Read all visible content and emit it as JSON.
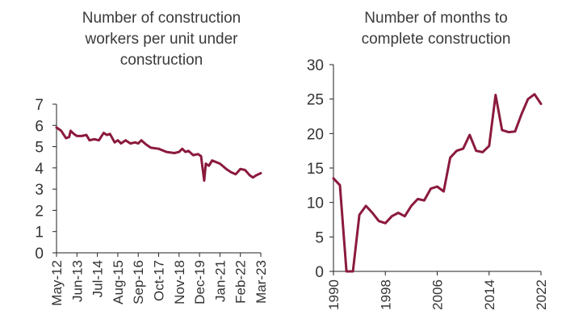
{
  "chart_data": [
    {
      "type": "line",
      "title_lines": [
        "Number of construction",
        "workers per unit under",
        "construction"
      ],
      "xlabel": "",
      "ylabel": "",
      "ylim": [
        0,
        7
      ],
      "yticks": [
        0,
        1,
        2,
        3,
        4,
        5,
        6,
        7
      ],
      "xlim": [
        "May-12",
        "Mar-23"
      ],
      "xticks": [
        "May-12",
        "Jun-13",
        "Jul-14",
        "Aug-15",
        "Sep-16",
        "Oct-17",
        "Nov-18",
        "Dec-19",
        "Jan-21",
        "Feb-22",
        "Mar-23"
      ],
      "grid": false,
      "color": "#8b1a3d",
      "series": [
        {
          "points": [
            [
              "May-12",
              5.9
            ],
            [
              "Aug-12",
              5.75
            ],
            [
              "Nov-12",
              5.4
            ],
            [
              "Jan-13",
              5.45
            ],
            [
              "Feb-13",
              5.75
            ],
            [
              "Apr-13",
              5.6
            ],
            [
              "Jun-13",
              5.5
            ],
            [
              "Sep-13",
              5.5
            ],
            [
              "Dec-13",
              5.55
            ],
            [
              "Feb-14",
              5.3
            ],
            [
              "May-14",
              5.35
            ],
            [
              "Aug-14",
              5.3
            ],
            [
              "Nov-14",
              5.65
            ],
            [
              "Jan-15",
              5.55
            ],
            [
              "Mar-15",
              5.6
            ],
            [
              "Jun-15",
              5.2
            ],
            [
              "Aug-15",
              5.3
            ],
            [
              "Oct-15",
              5.15
            ],
            [
              "Jan-16",
              5.3
            ],
            [
              "Apr-16",
              5.15
            ],
            [
              "Jul-16",
              5.2
            ],
            [
              "Sep-16",
              5.15
            ],
            [
              "Nov-16",
              5.3
            ],
            [
              "Feb-17",
              5.1
            ],
            [
              "May-17",
              4.95
            ],
            [
              "Oct-17",
              4.9
            ],
            [
              "Mar-18",
              4.75
            ],
            [
              "Aug-18",
              4.7
            ],
            [
              "Nov-18",
              4.75
            ],
            [
              "Jan-19",
              4.9
            ],
            [
              "Mar-19",
              4.75
            ],
            [
              "May-19",
              4.8
            ],
            [
              "Aug-19",
              4.6
            ],
            [
              "Nov-19",
              4.65
            ],
            [
              "Jan-20",
              4.55
            ],
            [
              "Mar-20",
              3.4
            ],
            [
              "Apr-20",
              4.2
            ],
            [
              "Jun-20",
              4.1
            ],
            [
              "Aug-20",
              4.35
            ],
            [
              "Jan-21",
              4.2
            ],
            [
              "May-21",
              3.95
            ],
            [
              "Aug-21",
              3.8
            ],
            [
              "Nov-21",
              3.7
            ],
            [
              "Feb-22",
              3.95
            ],
            [
              "May-22",
              3.9
            ],
            [
              "Aug-22",
              3.65
            ],
            [
              "Oct-22",
              3.55
            ],
            [
              "Dec-22",
              3.65
            ],
            [
              "Mar-23",
              3.75
            ]
          ]
        }
      ]
    },
    {
      "type": "line",
      "title_lines": [
        "Number of months to",
        "complete construction"
      ],
      "xlabel": "",
      "ylabel": "",
      "ylim": [
        0,
        30
      ],
      "yticks": [
        0,
        5,
        10,
        15,
        20,
        25,
        30
      ],
      "xlim": [
        1990,
        2022
      ],
      "xticks": [
        1990,
        1998,
        2006,
        2014,
        2022
      ],
      "grid": false,
      "color": "#8b1a3d",
      "series": [
        {
          "points": [
            [
              1990,
              13.5
            ],
            [
              1991,
              12.5
            ],
            [
              1992,
              0
            ],
            [
              1993,
              0
            ],
            [
              1994,
              8.2
            ],
            [
              1995,
              9.5
            ],
            [
              1996,
              8.5
            ],
            [
              1997,
              7.3
            ],
            [
              1998,
              7.0
            ],
            [
              1999,
              8.0
            ],
            [
              2000,
              8.5
            ],
            [
              2001,
              8.0
            ],
            [
              2002,
              9.5
            ],
            [
              2003,
              10.5
            ],
            [
              2004,
              10.3
            ],
            [
              2005,
              12.0
            ],
            [
              2006,
              12.3
            ],
            [
              2007,
              11.6
            ],
            [
              2008,
              16.5
            ],
            [
              2009,
              17.5
            ],
            [
              2010,
              17.8
            ],
            [
              2011,
              19.8
            ],
            [
              2012,
              17.5
            ],
            [
              2013,
              17.3
            ],
            [
              2014,
              18.2
            ],
            [
              2015,
              25.6
            ],
            [
              2016,
              20.5
            ],
            [
              2017,
              20.2
            ],
            [
              2018,
              20.3
            ],
            [
              2019,
              22.8
            ],
            [
              2020,
              25.0
            ],
            [
              2021,
              25.7
            ],
            [
              2022,
              24.3
            ]
          ]
        }
      ]
    }
  ]
}
